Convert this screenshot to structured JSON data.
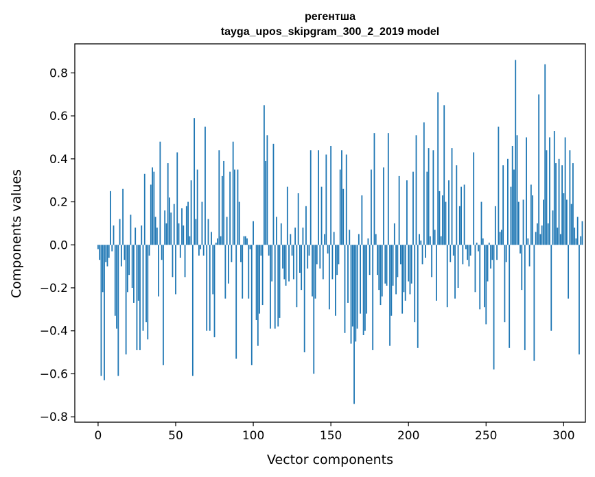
{
  "chart_data": {
    "type": "bar",
    "title_line1": "регентша",
    "title_line2": "tayga_upos_skipgram_300_2_2019 model",
    "xlabel": "Vector components",
    "ylabel": "Components values",
    "xlim": [
      -15,
      314
    ],
    "ylim": [
      -0.825,
      0.935
    ],
    "xticks": [
      0,
      50,
      100,
      150,
      200,
      250,
      300
    ],
    "xtick_labels": [
      "0",
      "50",
      "100",
      "150",
      "200",
      "250",
      "300"
    ],
    "yticks": [
      -0.8,
      -0.6,
      -0.4,
      -0.2,
      0.0,
      0.2,
      0.4,
      0.6,
      0.8
    ],
    "ytick_labels": [
      "−0.8",
      "−0.6",
      "−0.4",
      "−0.2",
      "0.0",
      "0.2",
      "0.4",
      "0.6",
      "0.8"
    ],
    "bar_color": "#1f77b4",
    "values": [
      -0.02,
      -0.07,
      -0.61,
      -0.22,
      -0.63,
      -0.08,
      -0.1,
      -0.06,
      0.25,
      -0.03,
      0.09,
      -0.33,
      -0.39,
      -0.61,
      0.12,
      -0.1,
      0.26,
      -0.07,
      -0.51,
      -0.22,
      -0.14,
      0.14,
      -0.2,
      -0.27,
      0.08,
      -0.49,
      -0.26,
      -0.49,
      0.09,
      -0.4,
      0.33,
      -0.36,
      -0.44,
      -0.05,
      0.28,
      0.36,
      0.34,
      0.13,
      0.08,
      -0.24,
      0.48,
      -0.07,
      -0.56,
      0.16,
      0.1,
      0.38,
      0.22,
      0.15,
      -0.15,
      0.19,
      -0.23,
      0.43,
      0.1,
      -0.06,
      0.17,
      0.09,
      -0.15,
      0.18,
      0.2,
      0.04,
      0.3,
      -0.61,
      0.59,
      0.12,
      0.35,
      -0.05,
      -0.02,
      0.2,
      -0.05,
      0.55,
      -0.4,
      0.12,
      -0.4,
      0.06,
      -0.23,
      -0.43,
      0.01,
      0.03,
      0.44,
      0.04,
      0.32,
      0.39,
      -0.25,
      0.13,
      -0.18,
      0.34,
      -0.08,
      0.48,
      0.35,
      -0.53,
      0.35,
      0.2,
      -0.08,
      -0.25,
      0.04,
      0.04,
      0.03,
      -0.25,
      -0.02,
      -0.56,
      0.11,
      0.0,
      -0.35,
      -0.47,
      -0.32,
      -0.05,
      -0.28,
      0.65,
      0.39,
      0.51,
      -0.05,
      -0.39,
      -0.17,
      0.47,
      -0.39,
      0.13,
      -0.38,
      -0.34,
      0.1,
      -0.11,
      -0.16,
      -0.19,
      0.27,
      -0.17,
      0.05,
      -0.05,
      -0.16,
      0.08,
      -0.29,
      0.24,
      -0.13,
      -0.21,
      0.08,
      -0.5,
      0.18,
      -0.11,
      -0.05,
      0.44,
      -0.24,
      -0.6,
      -0.25,
      -0.09,
      0.44,
      -0.11,
      0.27,
      -0.16,
      0.05,
      0.42,
      -0.04,
      -0.3,
      0.46,
      -0.16,
      0.06,
      -0.33,
      -0.14,
      -0.09,
      0.35,
      0.44,
      0.26,
      -0.41,
      0.42,
      -0.27,
      0.07,
      -0.46,
      -0.38,
      -0.74,
      -0.45,
      -0.39,
      0.05,
      -0.32,
      0.23,
      -0.42,
      -0.4,
      -0.32,
      0.03,
      -0.14,
      0.35,
      -0.49,
      0.52,
      0.05,
      -0.14,
      -0.21,
      -0.28,
      -0.24,
      0.36,
      -0.18,
      -0.19,
      0.52,
      -0.47,
      -0.33,
      -0.19,
      0.1,
      -0.23,
      -0.15,
      0.32,
      -0.09,
      -0.32,
      -0.22,
      -0.26,
      0.3,
      -0.17,
      -0.23,
      -0.18,
      0.34,
      -0.36,
      0.51,
      -0.48,
      0.05,
      0.02,
      -0.09,
      0.57,
      -0.06,
      0.34,
      0.45,
      0.04,
      -0.15,
      0.44,
      0.07,
      -0.26,
      0.71,
      0.25,
      0.04,
      0.23,
      0.65,
      0.2,
      -0.29,
      0.3,
      -0.08,
      0.45,
      -0.05,
      -0.25,
      0.37,
      -0.2,
      0.18,
      0.27,
      -0.09,
      0.28,
      -0.02,
      -0.07,
      -0.1,
      -0.05,
      0.0,
      0.43,
      -0.22,
      0.01,
      -0.03,
      -0.3,
      0.2,
      0.03,
      -0.29,
      -0.37,
      -0.17,
      0.01,
      -0.11,
      -0.07,
      -0.58,
      0.18,
      -0.07,
      0.55,
      0.06,
      0.07,
      0.37,
      -0.36,
      -0.08,
      0.4,
      -0.48,
      0.27,
      0.46,
      0.35,
      0.86,
      0.51,
      0.2,
      -0.04,
      -0.21,
      0.21,
      -0.49,
      0.5,
      0.03,
      -0.1,
      0.28,
      0.23,
      -0.54,
      0.06,
      0.1,
      0.7,
      0.05,
      0.09,
      0.21,
      0.84,
      0.44,
      0.1,
      0.5,
      -0.4,
      0.16,
      0.53,
      0.38,
      0.08,
      0.4,
      0.05,
      0.37,
      0.24,
      0.5,
      0.21,
      -0.25,
      0.44,
      0.19,
      0.38,
      0.08,
      0.03,
      0.13,
      -0.51,
      0.04,
      0.11,
      0.0
    ]
  }
}
